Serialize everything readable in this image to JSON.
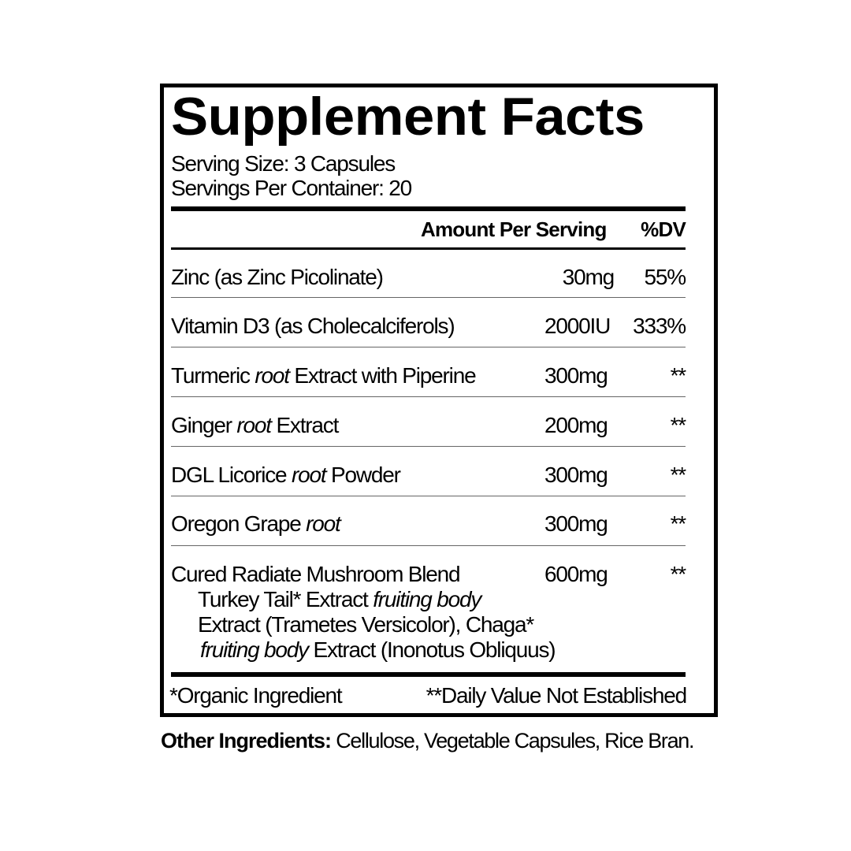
{
  "title": "Supplement Facts",
  "serving_size": "Serving Size: 3 Capsules",
  "servings_per_container": "Servings Per Container: 20",
  "header": {
    "amount": "Amount Per Serving",
    "dv": "%DV"
  },
  "rows": [
    {
      "name": "Zinc (as Zinc Picolinate)",
      "amount": "30mg",
      "dv": "55%"
    },
    {
      "name": "Vitamin D3 (as Cholecalciferols)",
      "amount": "2000IU",
      "dv": "333%"
    },
    {
      "name_pre": "Turmeric ",
      "name_italic": "root",
      "name_post": " Extract with Piperine",
      "amount": "300mg",
      "dv": "**"
    },
    {
      "name_pre": "Ginger ",
      "name_italic": "root",
      "name_post": " Extract",
      "amount": "200mg",
      "dv": "**"
    },
    {
      "name_pre": "DGL Licorice ",
      "name_italic": "root",
      "name_post": " Powder",
      "amount": "300mg",
      "dv": "**"
    },
    {
      "name_pre": "Oregon Grape ",
      "name_italic": "root",
      "name_post": "",
      "amount": "300mg",
      "dv": "**"
    },
    {
      "name": "Cured Radiate Mushroom Blend",
      "amount": "600mg",
      "dv": "**"
    }
  ],
  "blend_detail": {
    "line1_pre": "Turkey Tail* Extract ",
    "line1_italic": "fruiting body",
    "line2": "Extract (Trametes Versicolor), Chaga*",
    "line3_italic": "fruiting body",
    "line3_post": " Extract (Inonotus Obliquus)"
  },
  "footnotes": {
    "organic": "*Organic Ingredient",
    "dv_not_established": "**Daily Value Not Established"
  },
  "other_ingredients": {
    "label": "Other Ingredients:",
    "value": " Cellulose, Vegetable Capsules, Rice Bran."
  }
}
